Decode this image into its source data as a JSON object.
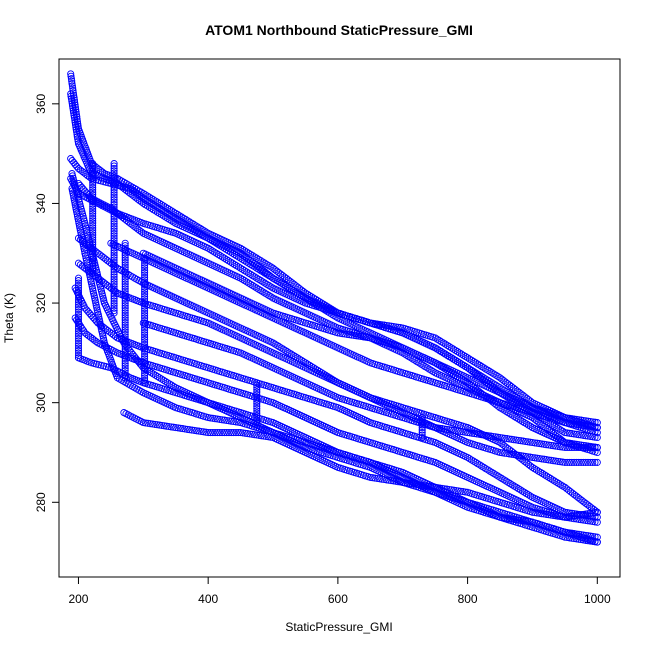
{
  "chart_data": {
    "type": "scatter",
    "title": "ATOM1 Northbound StaticPressure_GMI",
    "xlabel": "StaticPressure_GMI",
    "ylabel": "Theta (K)",
    "xlim": [
      170,
      1035
    ],
    "ylim": [
      265,
      369
    ],
    "xticks": [
      200,
      400,
      600,
      800,
      1000
    ],
    "yticks": [
      280,
      300,
      320,
      340,
      360
    ],
    "marker": "open-circle",
    "color": "#0000ff",
    "grid": false,
    "legend": "none",
    "profiles": [
      {
        "x": [
          188,
          200,
          220,
          240,
          260,
          300,
          350,
          400,
          450,
          500,
          550,
          600,
          650,
          700,
          750,
          800,
          850,
          900,
          950,
          1000
        ],
        "y": [
          366,
          355,
          348,
          346,
          345,
          342,
          338,
          334,
          331,
          327,
          322,
          318,
          316,
          314,
          311,
          307,
          303,
          299,
          297,
          296
        ]
      },
      {
        "x": [
          188,
          200,
          220,
          240,
          260,
          300,
          350,
          400,
          450,
          500,
          550,
          600,
          650,
          700,
          750,
          800,
          850,
          900,
          950,
          1000
        ],
        "y": [
          362,
          352,
          346,
          345,
          344,
          340,
          336,
          333,
          330,
          325,
          321,
          318,
          316,
          315,
          313,
          309,
          305,
          300,
          297,
          295
        ]
      },
      {
        "x": [
          188,
          200,
          220,
          250,
          280,
          300,
          350,
          400,
          450,
          500,
          550,
          600,
          650,
          700,
          750,
          800,
          850,
          900,
          950,
          1000
        ],
        "y": [
          349,
          347,
          345,
          344,
          343,
          341,
          337,
          333,
          329,
          325,
          321,
          317,
          314,
          311,
          308,
          305,
          302,
          299,
          296,
          294
        ]
      },
      {
        "x": [
          188,
          200,
          230,
          260,
          300,
          350,
          400,
          450,
          500,
          550,
          600,
          650,
          700,
          750,
          800,
          850,
          900,
          950,
          1000
        ],
        "y": [
          345,
          342,
          340,
          338,
          336,
          334,
          331,
          327,
          323,
          320,
          318,
          316,
          314,
          311,
          307,
          302,
          298,
          294,
          293
        ]
      },
      {
        "x": [
          200,
          220,
          250,
          280,
          300,
          350,
          400,
          450,
          500,
          550,
          600,
          650,
          700,
          750,
          800,
          850,
          900,
          950,
          1000
        ],
        "y": [
          344,
          341,
          339,
          336,
          334,
          331,
          328,
          325,
          321,
          318,
          315,
          313,
          310,
          306,
          303,
          300,
          297,
          292,
          290
        ]
      },
      {
        "x": [
          200,
          230,
          260,
          300,
          350,
          400,
          450,
          500,
          550,
          600,
          650,
          700,
          750,
          800,
          850,
          900,
          950,
          1000
        ],
        "y": [
          333,
          330,
          327,
          324,
          321,
          318,
          315,
          312,
          308,
          304,
          301,
          298,
          295,
          292,
          290,
          289,
          288,
          288
        ]
      },
      {
        "x": [
          200,
          230,
          260,
          300,
          350,
          400,
          450,
          500,
          550,
          600,
          650,
          700,
          750,
          800,
          850,
          900,
          950,
          1000
        ],
        "y": [
          328,
          325,
          322,
          320,
          318,
          316,
          313,
          310,
          307,
          304,
          301,
          299,
          297,
          295,
          292,
          287,
          283,
          278
        ]
      },
      {
        "x": [
          195,
          210,
          230,
          260,
          300,
          350,
          400,
          450,
          500,
          550,
          600,
          650,
          700,
          750,
          800,
          850,
          900,
          950,
          1000
        ],
        "y": [
          323,
          319,
          316,
          313,
          311,
          309,
          307,
          305,
          303,
          301,
          299,
          296,
          294,
          292,
          289,
          285,
          281,
          278,
          277
        ]
      },
      {
        "x": [
          195,
          210,
          230,
          260,
          300,
          350,
          400,
          450,
          500,
          550,
          600,
          650,
          700,
          750,
          800,
          850,
          900,
          950,
          1000
        ],
        "y": [
          317,
          314,
          312,
          310,
          308,
          306,
          304,
          302,
          300,
          297,
          294,
          292,
          290,
          288,
          285,
          282,
          279,
          277,
          276
        ]
      },
      {
        "x": [
          200,
          220,
          250,
          280,
          300,
          350,
          400,
          450,
          500,
          550,
          600,
          650,
          700,
          750,
          800,
          850,
          900,
          950,
          1000
        ],
        "y": [
          309,
          308,
          307,
          305,
          304,
          302,
          300,
          298,
          296,
          293,
          290,
          288,
          286,
          283,
          280,
          278,
          276,
          274,
          273
        ]
      },
      {
        "x": [
          190,
          210,
          240,
          270,
          300,
          350,
          400,
          450,
          500,
          550,
          600,
          650,
          700,
          750,
          800,
          850,
          900,
          950,
          1000
        ],
        "y": [
          346,
          336,
          320,
          312,
          307,
          303,
          300,
          297,
          294,
          292,
          290,
          288,
          285,
          282,
          280,
          277,
          276,
          274,
          272
        ]
      },
      {
        "x": [
          190,
          210,
          240,
          260,
          300,
          350,
          400,
          450,
          500,
          550,
          600,
          650,
          700,
          750,
          800,
          850,
          900,
          950,
          1000
        ],
        "y": [
          343,
          330,
          312,
          305,
          302,
          299,
          297,
          296,
          294,
          291,
          289,
          287,
          284,
          282,
          279,
          277,
          275,
          273,
          272
        ]
      },
      {
        "x": [
          270,
          300,
          350,
          400,
          450,
          500,
          550,
          600,
          650,
          700,
          750,
          800,
          850,
          900,
          950,
          1000
        ],
        "y": [
          298,
          296,
          295,
          294,
          294,
          293,
          290,
          287,
          285,
          284,
          283,
          282,
          280,
          278,
          277,
          278
        ]
      },
      {
        "x": [
          300,
          350,
          400,
          450,
          500,
          550,
          600,
          650,
          700,
          750,
          800,
          850,
          900,
          950,
          1000
        ],
        "y": [
          330,
          327,
          324,
          321,
          318,
          316,
          314,
          313,
          311,
          308,
          304,
          299,
          295,
          292,
          291
        ]
      },
      {
        "x": [
          250,
          300,
          350,
          400,
          450,
          500,
          550,
          600,
          650,
          700,
          750,
          800,
          850,
          900,
          950,
          1000
        ],
        "y": [
          332,
          329,
          326,
          323,
          320,
          317,
          314,
          311,
          308,
          306,
          304,
          302,
          300,
          298,
          296,
          295
        ]
      },
      {
        "x": [
          300,
          350,
          400,
          450,
          500,
          550,
          600,
          650,
          700,
          750,
          800,
          850,
          900,
          950,
          1000
        ],
        "y": [
          316,
          314,
          312,
          310,
          307,
          304,
          301,
          299,
          297,
          295,
          294,
          293,
          292,
          291,
          291
        ]
      }
    ],
    "verticals": [
      {
        "x": 200,
        "y": [
          309,
          325
        ]
      },
      {
        "x": 222,
        "y": [
          326,
          348
        ]
      },
      {
        "x": 255,
        "y": [
          318,
          348
        ]
      },
      {
        "x": 272,
        "y": [
          305,
          332
        ]
      },
      {
        "x": 302,
        "y": [
          304,
          329
        ]
      },
      {
        "x": 475,
        "y": [
          296,
          304
        ]
      },
      {
        "x": 730,
        "y": [
          293,
          297
        ]
      }
    ]
  }
}
